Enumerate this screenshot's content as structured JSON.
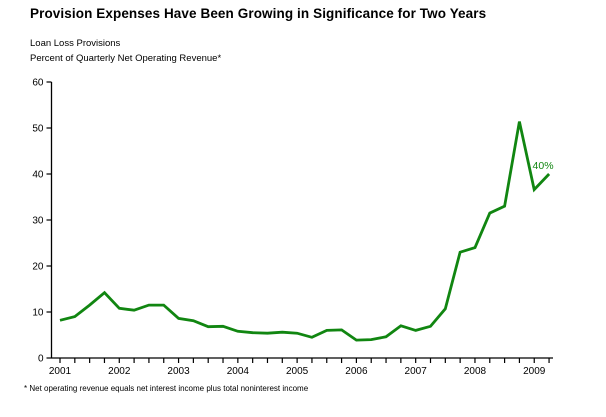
{
  "page": {
    "title": "Provision Expenses Have Been Growing in Significance for Two Years",
    "subtitle_line1": "Loan Loss Provisions",
    "subtitle_line2": "Percent of Quarterly Net Operating Revenue*",
    "footnote": "* Net operating revenue equals net interest income plus total noninterest income"
  },
  "chart_data": {
    "type": "line",
    "title": "Loan Loss Provisions",
    "ylabel": "Percent of Quarterly Net Operating Revenue",
    "ylim": [
      0,
      60
    ],
    "y_ticks": [
      0,
      10,
      20,
      30,
      40,
      50,
      60
    ],
    "x_year_labels": [
      "2001",
      "2002",
      "2003",
      "2004",
      "2005",
      "2006",
      "2007",
      "2008",
      "2009"
    ],
    "quarters": [
      "2001 Q1",
      "2001 Q2",
      "2001 Q3",
      "2001 Q4",
      "2002 Q1",
      "2002 Q2",
      "2002 Q3",
      "2002 Q4",
      "2003 Q1",
      "2003 Q2",
      "2003 Q3",
      "2003 Q4",
      "2004 Q1",
      "2004 Q2",
      "2004 Q3",
      "2004 Q4",
      "2005 Q1",
      "2005 Q2",
      "2005 Q3",
      "2005 Q4",
      "2006 Q1",
      "2006 Q2",
      "2006 Q3",
      "2006 Q4",
      "2007 Q1",
      "2007 Q2",
      "2007 Q3",
      "2007 Q4",
      "2008 Q1",
      "2008 Q2",
      "2008 Q3",
      "2008 Q4",
      "2009 Q1",
      "2009 Q2"
    ],
    "series": [
      {
        "name": "Loan Loss Provisions, Percent of Quarterly Net Operating Revenue",
        "color": "#118611",
        "values": [
          8.2,
          9.0,
          11.5,
          14.2,
          10.8,
          10.4,
          11.5,
          11.5,
          8.6,
          8.1,
          6.8,
          6.9,
          5.8,
          5.5,
          5.4,
          5.6,
          5.4,
          4.5,
          6.0,
          6.1,
          3.9,
          4.0,
          4.6,
          7.0,
          6.0,
          6.9,
          10.7,
          23.0,
          24.0,
          31.5,
          33.0,
          51.4,
          36.6,
          40.0
        ]
      }
    ],
    "annotation": {
      "text": "40%",
      "quarter_index": 33,
      "value": 40
    },
    "grid": false,
    "legend_position": "none",
    "axis_color": "#000000"
  }
}
